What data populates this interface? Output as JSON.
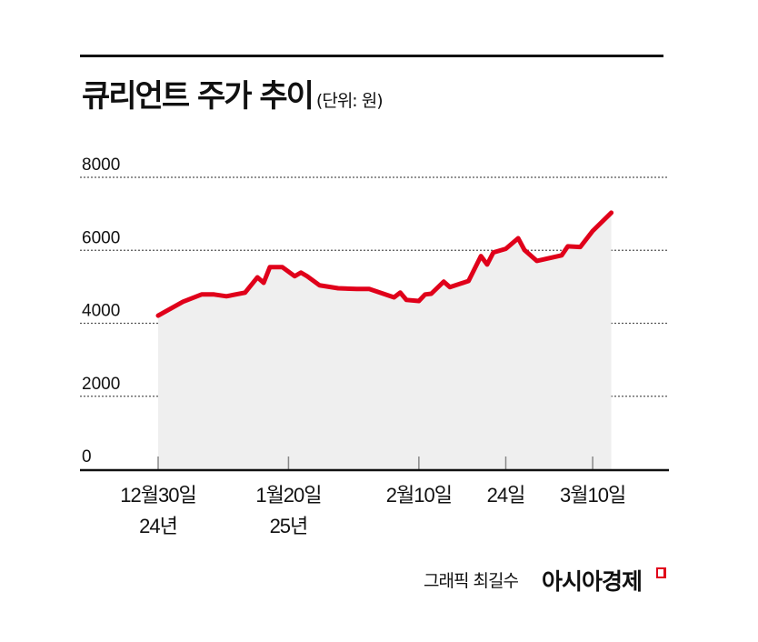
{
  "header": {
    "title": "큐리언트 주가 추이",
    "unit": "(단위: 원)"
  },
  "footer": {
    "credit": "그래픽 최길수",
    "logo": "아시아경제"
  },
  "colors": {
    "line": "#e0001a",
    "area": "#efefef",
    "grid": "#555555"
  },
  "chart_data": {
    "type": "area",
    "title": "큐리언트 주가 추이",
    "ylabel": "(단위: 원)",
    "ylim": [
      0,
      8000
    ],
    "yticks": [
      "0",
      "2000",
      "4000",
      "6000",
      "8000"
    ],
    "grid": true,
    "xticks": [
      {
        "date": "2024-12-30",
        "label": "12월30일",
        "sub": "24년"
      },
      {
        "date": "2025-01-20",
        "label": "1월20일",
        "sub": "25년"
      },
      {
        "date": "2025-02-10",
        "label": "2월10일",
        "sub": ""
      },
      {
        "date": "2025-02-24",
        "label": "24일",
        "sub": ""
      },
      {
        "date": "2025-03-10",
        "label": "3월10일",
        "sub": ""
      }
    ],
    "x": [
      "2024-12-30",
      "2025-01-03",
      "2025-01-06",
      "2025-01-08",
      "2025-01-10",
      "2025-01-13",
      "2025-01-15",
      "2025-01-16",
      "2025-01-17",
      "2025-01-19",
      "2025-01-21",
      "2025-01-22",
      "2025-01-23",
      "2025-01-25",
      "2025-01-28",
      "2025-01-31",
      "2025-02-02",
      "2025-02-06",
      "2025-02-07",
      "2025-02-08",
      "2025-02-10",
      "2025-02-11",
      "2025-02-12",
      "2025-02-14",
      "2025-02-15",
      "2025-02-18",
      "2025-02-20",
      "2025-02-21",
      "2025-02-22",
      "2025-02-24",
      "2025-02-26",
      "2025-02-27",
      "2025-03-01",
      "2025-03-05",
      "2025-03-06",
      "2025-03-08",
      "2025-03-10",
      "2025-03-13"
    ],
    "values": [
      4210,
      4590,
      4790,
      4790,
      4740,
      4840,
      5260,
      5110,
      5540,
      5540,
      5290,
      5390,
      5290,
      5040,
      4960,
      4940,
      4940,
      4710,
      4840,
      4640,
      4610,
      4790,
      4810,
      5140,
      4990,
      5160,
      5840,
      5610,
      5940,
      6040,
      6330,
      6010,
      5710,
      5860,
      6110,
      6090,
      6530,
      7030
    ]
  }
}
